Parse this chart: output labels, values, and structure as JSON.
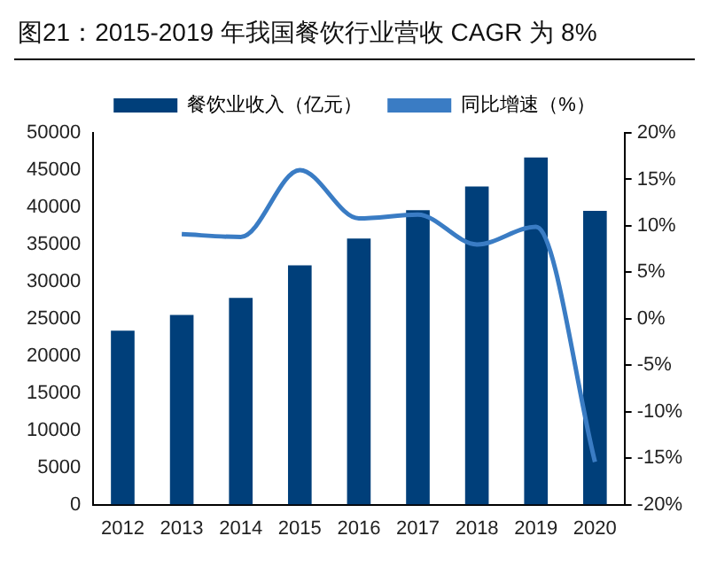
{
  "chart_data": {
    "type": "bar",
    "title": "图21：2015-2019 年我国餐饮行业营收 CAGR 为 8%",
    "categories": [
      "2012",
      "2013",
      "2014",
      "2015",
      "2016",
      "2017",
      "2018",
      "2019",
      "2020"
    ],
    "series": [
      {
        "name": "餐饮业收入（亿元）",
        "color": "#003f7a",
        "values": [
          23400,
          25500,
          27800,
          32200,
          35800,
          39600,
          42800,
          46700,
          39500
        ]
      },
      {
        "name": "同比增速（%）",
        "type": "line",
        "axis": "y2",
        "color": "#3a7cc4",
        "values": [
          null,
          9.1,
          8.8,
          16.0,
          10.8,
          11.2,
          8.0,
          9.9,
          -15.4
        ]
      }
    ],
    "ylim": [
      0,
      50000
    ],
    "yticks": [
      0,
      5000,
      10000,
      15000,
      20000,
      25000,
      30000,
      35000,
      40000,
      45000,
      50000
    ],
    "y2lim": [
      -20,
      20
    ],
    "y2ticks": [
      {
        "value": -20,
        "label": "-20%"
      },
      {
        "value": -15,
        "label": "-15%"
      },
      {
        "value": -10,
        "label": "-10%"
      },
      {
        "value": -5,
        "label": "-5%"
      },
      {
        "value": 0,
        "label": "0%"
      },
      {
        "value": 5,
        "label": "5%"
      },
      {
        "value": 10,
        "label": "10%"
      },
      {
        "value": 15,
        "label": "15%"
      },
      {
        "value": 20,
        "label": "20%"
      }
    ],
    "grid": false,
    "legend": "top",
    "marker": "none",
    "line_style": "solid"
  }
}
